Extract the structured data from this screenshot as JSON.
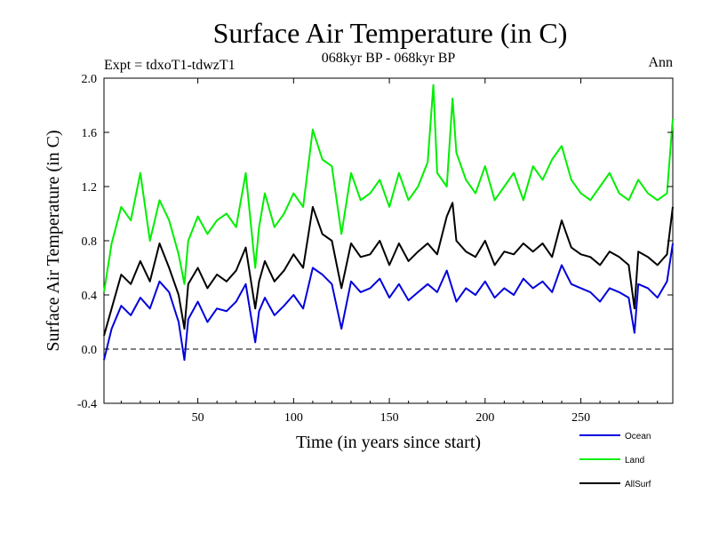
{
  "chart_data": {
    "type": "line",
    "title": "Surface Air Temperature (in C)",
    "subtitle": "068kyr BP - 068kyr BP",
    "left_note": "Expt = tdxoT1-tdwzT1",
    "right_note": "Ann",
    "xlabel": "Time (in years since start)",
    "ylabel": "Surface Air Temperature (in C)",
    "xlim": [
      1,
      298
    ],
    "ylim": [
      -0.4,
      2.0
    ],
    "xticks": [
      50,
      100,
      150,
      200,
      250
    ],
    "xtick_labels": [
      "50",
      "100",
      "150",
      "200",
      "250"
    ],
    "yticks": [
      -0.4,
      0.0,
      0.4,
      0.8,
      1.2,
      1.6,
      2.0
    ],
    "ytick_labels": [
      "-0.4",
      "0.0",
      "0.4",
      "0.8",
      "1.2",
      "1.6",
      "2.0"
    ],
    "reference_line": {
      "y": 0.0,
      "style": "dashed"
    },
    "legend_position": "bottom-right",
    "series": [
      {
        "name": "Ocean",
        "color": "#0000dd",
        "x": [
          1,
          5,
          10,
          15,
          20,
          25,
          30,
          35,
          40,
          43,
          45,
          50,
          55,
          60,
          65,
          70,
          75,
          80,
          82,
          85,
          90,
          95,
          100,
          105,
          110,
          115,
          120,
          125,
          130,
          135,
          140,
          145,
          150,
          155,
          160,
          165,
          170,
          175,
          180,
          185,
          190,
          195,
          200,
          205,
          210,
          215,
          220,
          225,
          230,
          235,
          240,
          245,
          250,
          255,
          260,
          265,
          270,
          275,
          278,
          280,
          285,
          290,
          295,
          298
        ],
        "values": [
          -0.08,
          0.15,
          0.32,
          0.25,
          0.38,
          0.3,
          0.5,
          0.42,
          0.2,
          -0.08,
          0.22,
          0.35,
          0.2,
          0.3,
          0.28,
          0.35,
          0.48,
          0.05,
          0.28,
          0.38,
          0.25,
          0.32,
          0.4,
          0.3,
          0.6,
          0.55,
          0.48,
          0.15,
          0.5,
          0.42,
          0.45,
          0.52,
          0.38,
          0.48,
          0.36,
          0.42,
          0.48,
          0.42,
          0.58,
          0.35,
          0.45,
          0.4,
          0.5,
          0.38,
          0.45,
          0.4,
          0.52,
          0.45,
          0.5,
          0.42,
          0.62,
          0.48,
          0.45,
          0.42,
          0.35,
          0.45,
          0.42,
          0.38,
          0.12,
          0.48,
          0.45,
          0.38,
          0.5,
          0.78
        ]
      },
      {
        "name": "Land",
        "color": "#00ee00",
        "x": [
          1,
          5,
          10,
          15,
          20,
          25,
          30,
          35,
          40,
          43,
          45,
          50,
          55,
          60,
          65,
          70,
          75,
          80,
          82,
          85,
          90,
          95,
          100,
          105,
          110,
          115,
          120,
          125,
          130,
          135,
          140,
          145,
          150,
          155,
          160,
          165,
          170,
          173,
          175,
          180,
          183,
          185,
          190,
          195,
          200,
          205,
          210,
          215,
          220,
          225,
          230,
          235,
          240,
          245,
          250,
          255,
          260,
          265,
          270,
          275,
          280,
          285,
          290,
          295,
          298
        ],
        "values": [
          0.42,
          0.78,
          1.05,
          0.95,
          1.3,
          0.8,
          1.1,
          0.95,
          0.7,
          0.48,
          0.8,
          0.98,
          0.85,
          0.95,
          1.0,
          0.9,
          1.3,
          0.6,
          0.9,
          1.15,
          0.9,
          1.0,
          1.15,
          1.05,
          1.62,
          1.4,
          1.35,
          0.85,
          1.3,
          1.1,
          1.15,
          1.25,
          1.05,
          1.3,
          1.1,
          1.2,
          1.38,
          1.95,
          1.3,
          1.2,
          1.85,
          1.45,
          1.25,
          1.15,
          1.35,
          1.1,
          1.2,
          1.3,
          1.1,
          1.35,
          1.25,
          1.4,
          1.5,
          1.25,
          1.15,
          1.1,
          1.2,
          1.3,
          1.15,
          1.1,
          1.25,
          1.15,
          1.1,
          1.15,
          1.7
        ]
      },
      {
        "name": "AllSurf",
        "color": "#000000",
        "x": [
          1,
          5,
          10,
          15,
          20,
          25,
          30,
          35,
          40,
          43,
          45,
          50,
          55,
          60,
          65,
          70,
          75,
          80,
          82,
          85,
          90,
          95,
          100,
          105,
          110,
          115,
          120,
          125,
          130,
          135,
          140,
          145,
          150,
          155,
          160,
          165,
          170,
          175,
          180,
          183,
          185,
          190,
          195,
          200,
          205,
          210,
          215,
          220,
          225,
          230,
          235,
          240,
          245,
          250,
          255,
          260,
          265,
          270,
          275,
          278,
          280,
          285,
          290,
          295,
          298
        ],
        "values": [
          0.1,
          0.3,
          0.55,
          0.48,
          0.65,
          0.5,
          0.78,
          0.6,
          0.4,
          0.15,
          0.48,
          0.6,
          0.45,
          0.55,
          0.5,
          0.58,
          0.75,
          0.3,
          0.5,
          0.65,
          0.5,
          0.58,
          0.7,
          0.6,
          1.05,
          0.85,
          0.8,
          0.45,
          0.78,
          0.68,
          0.7,
          0.8,
          0.62,
          0.78,
          0.65,
          0.72,
          0.78,
          0.7,
          0.98,
          1.08,
          0.8,
          0.72,
          0.68,
          0.8,
          0.62,
          0.72,
          0.7,
          0.78,
          0.72,
          0.78,
          0.68,
          0.95,
          0.75,
          0.7,
          0.68,
          0.62,
          0.72,
          0.68,
          0.62,
          0.3,
          0.72,
          0.68,
          0.62,
          0.7,
          1.05
        ]
      }
    ]
  }
}
